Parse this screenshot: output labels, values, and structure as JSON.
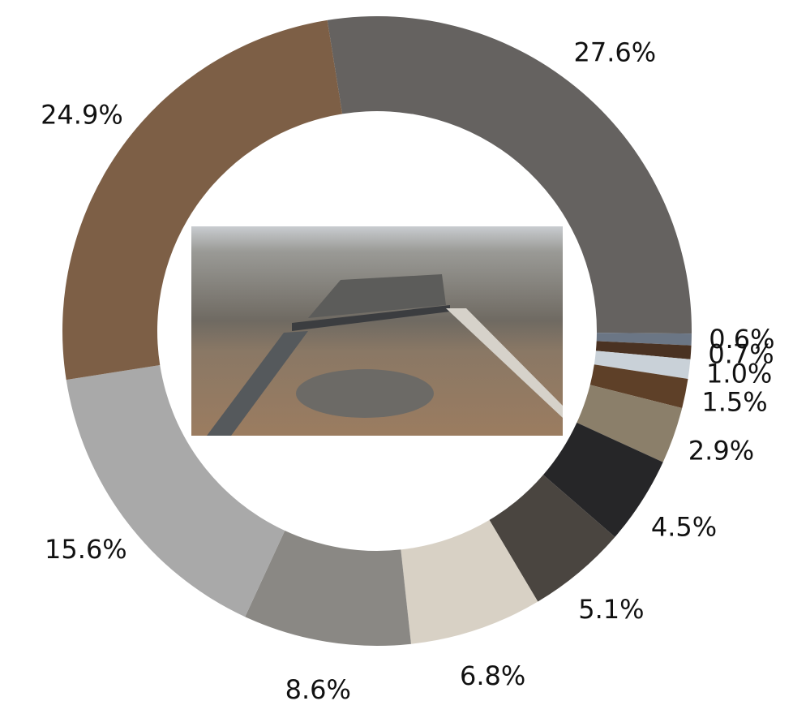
{
  "chart_data": {
    "type": "pie",
    "values": [
      27.6,
      0.6,
      0.7,
      1.0,
      1.5,
      2.9,
      4.5,
      5.1,
      6.8,
      8.6,
      15.6,
      24.9
    ],
    "value_labels": [
      "27.6%",
      "0.6%",
      "0.7%",
      "1.0%",
      "1.5%",
      "2.9%",
      "4.5%",
      "5.1%",
      "6.8%",
      "8.6%",
      "15.6%",
      "24.9%"
    ],
    "colors": [
      "#656260",
      "#6b7685",
      "#4a3222",
      "#c9d1d8",
      "#5e4028",
      "#8b7f6a",
      "#262628",
      "#4a4540",
      "#d8d1c5",
      "#8a8884",
      "#a9a9a9",
      "#7d5f46"
    ]
  }
}
